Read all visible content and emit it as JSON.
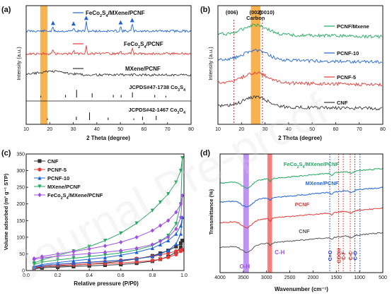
{
  "watermark": "Journal Pre-proof",
  "colors": {
    "black": "#333333",
    "red": "#e53935",
    "blue": "#1e63d6",
    "green": "#22a860",
    "purple": "#a04fe0",
    "gray": "#777777",
    "orange_band": "#f7a531",
    "red_band": "#f06a6a",
    "violet_band": "#b57ff2",
    "dashed_red": "#e02020",
    "dashed_blue": "#2033d0"
  },
  "chart_data": [
    {
      "type": "line",
      "panel": "(a)",
      "xlabel": "2 Theta (degree)",
      "ylabel": "Intensity (a.u.)",
      "xlim": [
        10,
        80
      ],
      "xticks": [
        10,
        20,
        30,
        40,
        50,
        60,
        70,
        80
      ],
      "grid": false,
      "highlight_band_2theta": [
        16,
        19
      ],
      "series": [
        {
          "name": "FeCo2S4/MXene/PCNF",
          "legend_sub": [
            "FeCo",
            "2",
            "S",
            "4",
            "/MXene/PCNF"
          ],
          "color": "#1e63d6",
          "peaks": [
            {
              "x": 21.4,
              "h": 0.7
            },
            {
              "x": 30.1,
              "h": 0.6
            },
            {
              "x": 35.5,
              "h": 1.6
            },
            {
              "x": 50.1,
              "h": 0.8
            },
            {
              "x": 55.0,
              "h": 1.2
            }
          ],
          "peak_markers_x": [
            21.4,
            30.1,
            35.5,
            50.1,
            55.0
          ]
        },
        {
          "name": "FeCo2S4/PCNF",
          "legend_sub": [
            "FeCo",
            "2",
            "S",
            "4",
            "/PCNF"
          ],
          "color": "#e53935",
          "peaks": [
            {
              "x": 21.4,
              "h": 0.7
            },
            {
              "x": 30.1,
              "h": 0.6
            },
            {
              "x": 35.5,
              "h": 1.6
            },
            {
              "x": 50.1,
              "h": 0.6
            },
            {
              "x": 55.0,
              "h": 0.9
            }
          ]
        },
        {
          "name": "MXene/PCNF",
          "legend_sub": [
            "MXene/PCNF"
          ],
          "color": "#333333"
        }
      ],
      "references": [
        {
          "name": "JCPDS#47-1738 Co3S4",
          "label_sub": [
            "JCPDS#47-1738 Co",
            "3",
            "S",
            "4"
          ],
          "lines": [
            {
              "x": 16.2,
              "h": 0.2
            },
            {
              "x": 26.7,
              "h": 0.3
            },
            {
              "x": 31.4,
              "h": 0.9
            },
            {
              "x": 38.0,
              "h": 0.5
            },
            {
              "x": 47.0,
              "h": 0.3
            },
            {
              "x": 50.3,
              "h": 0.3
            },
            {
              "x": 55.1,
              "h": 0.6
            },
            {
              "x": 64.6,
              "h": 0.3
            },
            {
              "x": 69.3,
              "h": 0.2
            }
          ]
        },
        {
          "name": "JCPDS#42-1467 Co3O4",
          "label_sub": [
            "JCPDS#42-1467 Co",
            "3",
            "O",
            "4"
          ],
          "lines": [
            {
              "x": 19.0,
              "h": 0.2
            },
            {
              "x": 31.3,
              "h": 0.4
            },
            {
              "x": 36.9,
              "h": 0.9
            },
            {
              "x": 44.8,
              "h": 0.3
            },
            {
              "x": 55.7,
              "h": 0.2
            },
            {
              "x": 59.4,
              "h": 0.4
            },
            {
              "x": 65.2,
              "h": 0.5
            }
          ]
        }
      ]
    },
    {
      "type": "line",
      "panel": "(b)",
      "xlabel": "2 Theta (degree)",
      "ylabel": "Intensity (a.u.)",
      "xlim": [
        10,
        80
      ],
      "xticks": [
        10,
        20,
        30,
        40,
        50,
        60,
        70,
        80
      ],
      "grid": false,
      "highlight_band_2theta": [
        24,
        28
      ],
      "annotations": [
        {
          "text": "(006)",
          "x": 16.8
        },
        {
          "text": "(002)",
          "x": 26.0
        },
        {
          "text": "Carbon",
          "x": 26.0
        },
        {
          "text": "(0010)",
          "x": 28.9
        }
      ],
      "dashed_lines_x": [
        16.8,
        28.9
      ],
      "series": [
        {
          "name": "PCNF/Mxene",
          "color": "#22a860"
        },
        {
          "name": "PCNF-10",
          "color": "#1e63d6"
        },
        {
          "name": "PCNF-5",
          "color": "#e53935"
        },
        {
          "name": "CNF",
          "color": "#333333"
        }
      ]
    },
    {
      "type": "line",
      "panel": "(c)",
      "xlabel": "Relative pressure (P/P0)",
      "ylabel": "Volume adsorbed (m³ g⁻¹ STP)",
      "xlim": [
        0.0,
        1.0
      ],
      "ylim": [
        0,
        350
      ],
      "xticks": [
        0.0,
        0.2,
        0.4,
        0.6,
        0.8,
        1.0
      ],
      "yticks": [
        0,
        50,
        100,
        150,
        200,
        250,
        300,
        350
      ],
      "grid": false,
      "legend": "top-left",
      "x": [
        0.05,
        0.1,
        0.2,
        0.3,
        0.4,
        0.5,
        0.6,
        0.7,
        0.8,
        0.85,
        0.9,
        0.95,
        0.98,
        0.99
      ],
      "series": [
        {
          "name": "CNF",
          "color": "#333333",
          "marker": "square",
          "adsorption": [
            5,
            8,
            10,
            12,
            14,
            16,
            18,
            22,
            28,
            34,
            42,
            55,
            70,
            90
          ],
          "desorption": [
            7,
            10,
            13,
            16,
            19,
            23,
            28,
            35,
            44,
            52,
            60,
            72,
            82,
            90
          ]
        },
        {
          "name": "PCNF-5",
          "color": "#e53935",
          "marker": "circle",
          "adsorption": [
            8,
            12,
            15,
            17,
            19,
            21,
            23,
            26,
            30,
            34,
            40,
            48,
            58,
            62
          ],
          "desorption": [
            10,
            14,
            18,
            21,
            24,
            27,
            31,
            36,
            42,
            47,
            52,
            58,
            61,
            62
          ]
        },
        {
          "name": "PCNF-10",
          "color": "#1e63d6",
          "marker": "triangle-up",
          "adsorption": [
            10,
            15,
            19,
            22,
            25,
            28,
            31,
            35,
            42,
            50,
            60,
            80,
            110,
            160
          ],
          "desorption": [
            12,
            18,
            24,
            29,
            34,
            39,
            46,
            55,
            67,
            78,
            90,
            110,
            135,
            160
          ]
        },
        {
          "name": "MXene/PCNF",
          "color": "#22a860",
          "marker": "triangle-down",
          "adsorption": [
            18,
            25,
            32,
            37,
            42,
            47,
            53,
            62,
            75,
            88,
            105,
            140,
            200,
            338
          ],
          "desorption": [
            22,
            32,
            45,
            58,
            72,
            90,
            112,
            142,
            180,
            205,
            230,
            265,
            300,
            338
          ]
        },
        {
          "name": "FeCo2S4/MXene/PCNF",
          "legend_sub": [
            "FeCo",
            "2",
            "S",
            "4",
            "/MXene/PCNF"
          ],
          "color": "#a04fe0",
          "marker": "diamond",
          "adsorption": [
            33,
            38,
            43,
            47,
            51,
            55,
            60,
            67,
            78,
            88,
            100,
            125,
            160,
            225
          ],
          "desorption": [
            36,
            42,
            50,
            57,
            65,
            74,
            85,
            100,
            120,
            135,
            150,
            175,
            200,
            225
          ]
        }
      ]
    },
    {
      "type": "line",
      "panel": "(d)",
      "xlabel": "Wavenumber (cm⁻¹)",
      "ylabel": "Transmittance (%)",
      "xlim": [
        4000,
        500
      ],
      "xticks": [
        4000,
        3500,
        3000,
        2500,
        2000,
        1500,
        1000,
        500
      ],
      "grid": false,
      "bands": [
        {
          "label": "O-H",
          "range": [
            3500,
            3380
          ],
          "color": "#b57ff2"
        },
        {
          "label": "C-H",
          "range": [
            2980,
            2880
          ],
          "color": "#f06a6a"
        }
      ],
      "dotted_lines": [
        {
          "x": 1640,
          "label": "C=O",
          "color": "#2033d0"
        },
        {
          "x": 1450,
          "label": "COOH",
          "color": "#e02020"
        },
        {
          "x": 1350,
          "label": "C-F",
          "color": "#e02020"
        },
        {
          "x": 1200,
          "label": "C-C",
          "color": "#e02020"
        },
        {
          "x": 1100,
          "label": "C-O",
          "color": "#2033d0"
        },
        {
          "x": 990,
          "label": "",
          "color": "#2033d0"
        }
      ],
      "series": [
        {
          "name": "FeCo2S4/MXene/PCNF",
          "legend_sub": [
            "FeCo",
            "2",
            "S",
            "4",
            "/MXene/PCNF"
          ],
          "color": "#22a860"
        },
        {
          "name": "MXene/PCNF",
          "color": "#1e63d6"
        },
        {
          "name": "PCNF",
          "color": "#e53935"
        },
        {
          "name": "CNF",
          "color": "#555555"
        }
      ]
    }
  ]
}
